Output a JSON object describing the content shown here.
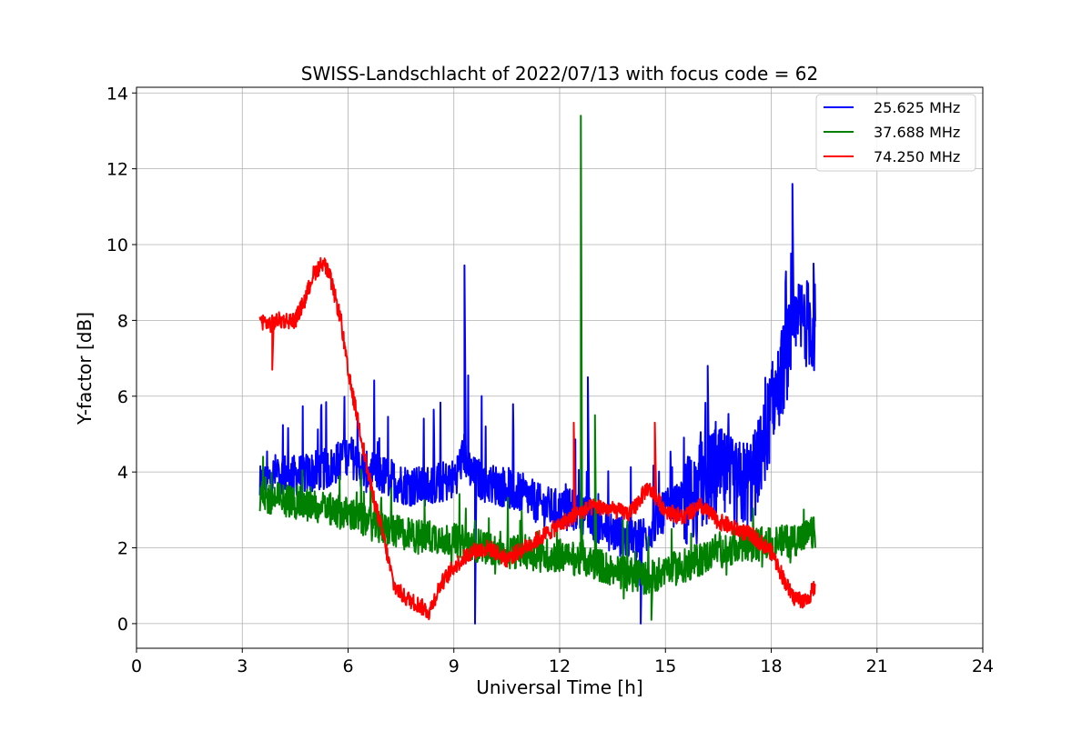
{
  "chart_data": {
    "type": "line",
    "title": "SWISS-Landschlacht of 2022/07/13 with focus code = 62",
    "xlabel": "Universal Time [h]",
    "ylabel": "Y-factor [dB]",
    "xlim": [
      0,
      24
    ],
    "ylim": [
      -0.65,
      14.15
    ],
    "xticks": [
      0,
      3,
      6,
      9,
      12,
      15,
      18,
      21,
      24
    ],
    "xtick_labels": [
      "0",
      "3",
      "6",
      "9",
      "12",
      "15",
      "18",
      "21",
      "24"
    ],
    "yticks": [
      0,
      2,
      4,
      6,
      8,
      10,
      12,
      14
    ],
    "ytick_labels": [
      "0",
      "2",
      "4",
      "6",
      "8",
      "10",
      "12",
      "14"
    ],
    "grid": true,
    "legend_position": "top-right",
    "series": [
      {
        "name": "25.625 MHz",
        "color": "#0000ff",
        "x": [
          3.5,
          4.0,
          4.5,
          5.0,
          5.5,
          6.0,
          6.5,
          7.0,
          7.5,
          8.0,
          8.5,
          9.0,
          9.3,
          9.5,
          10.0,
          10.5,
          11.0,
          11.5,
          12.0,
          12.5,
          13.0,
          13.5,
          14.0,
          14.5,
          15.0,
          15.5,
          16.0,
          16.5,
          17.0,
          17.5,
          18.0,
          18.3,
          18.6,
          18.9,
          19.25
        ],
        "y": [
          3.6,
          4.0,
          3.9,
          4.0,
          4.1,
          4.5,
          4.0,
          3.9,
          3.7,
          3.6,
          3.7,
          3.8,
          4.5,
          3.9,
          3.7,
          3.6,
          3.4,
          3.1,
          3.0,
          3.0,
          2.7,
          2.4,
          2.2,
          2.4,
          3.0,
          3.2,
          3.6,
          4.0,
          3.6,
          3.8,
          5.6,
          6.6,
          7.6,
          8.0,
          7.8
        ],
        "peaks": [
          [
            9.3,
            9.45
          ],
          [
            9.6,
            0.0
          ],
          [
            12.8,
            6.5
          ],
          [
            14.3,
            0.0
          ],
          [
            16.2,
            6.8
          ],
          [
            18.6,
            11.6
          ],
          [
            19.2,
            9.5
          ]
        ]
      },
      {
        "name": "37.688 MHz",
        "color": "#008000",
        "x": [
          3.5,
          4.0,
          4.5,
          5.0,
          5.5,
          6.0,
          6.5,
          7.0,
          7.5,
          8.0,
          8.5,
          9.0,
          9.5,
          10.0,
          10.5,
          11.0,
          11.5,
          12.0,
          12.5,
          13.0,
          13.5,
          14.0,
          14.5,
          15.0,
          15.5,
          16.0,
          16.5,
          17.0,
          17.5,
          18.0,
          18.5,
          19.0,
          19.25
        ],
        "y": [
          3.3,
          3.3,
          3.2,
          3.1,
          3.0,
          2.9,
          2.7,
          2.5,
          2.4,
          2.3,
          2.3,
          2.2,
          2.1,
          2.0,
          1.9,
          1.9,
          1.8,
          1.8,
          1.7,
          1.6,
          1.4,
          1.3,
          1.2,
          1.4,
          1.5,
          1.7,
          1.9,
          2.0,
          2.1,
          2.1,
          2.2,
          2.3,
          2.4
        ],
        "peaks": [
          [
            12.6,
            13.4
          ],
          [
            13.0,
            5.5
          ],
          [
            14.6,
            0.1
          ]
        ]
      },
      {
        "name": "74.250 MHz",
        "color": "#ff0000",
        "x": [
          3.5,
          3.8,
          4.0,
          4.5,
          4.8,
          5.0,
          5.3,
          5.5,
          5.8,
          6.0,
          6.3,
          6.6,
          7.0,
          7.3,
          7.6,
          8.0,
          8.3,
          8.6,
          9.0,
          9.5,
          10.0,
          10.5,
          11.0,
          11.5,
          12.0,
          12.5,
          13.0,
          13.5,
          14.0,
          14.5,
          15.0,
          15.5,
          16.0,
          16.5,
          17.0,
          17.5,
          18.0,
          18.3,
          18.6,
          19.0,
          19.25
        ],
        "y": [
          8.0,
          7.9,
          8.0,
          8.0,
          8.6,
          9.2,
          9.55,
          9.1,
          8.0,
          6.6,
          5.3,
          3.8,
          2.3,
          1.0,
          0.7,
          0.5,
          0.3,
          1.0,
          1.5,
          1.9,
          2.0,
          1.7,
          2.0,
          2.3,
          2.6,
          2.9,
          3.1,
          3.0,
          2.9,
          3.6,
          3.0,
          2.8,
          3.1,
          2.7,
          2.5,
          2.3,
          1.9,
          1.3,
          0.7,
          0.6,
          1.0
        ],
        "peaks": [
          [
            3.85,
            6.7
          ],
          [
            12.4,
            5.3
          ],
          [
            14.7,
            5.3
          ]
        ]
      }
    ]
  }
}
